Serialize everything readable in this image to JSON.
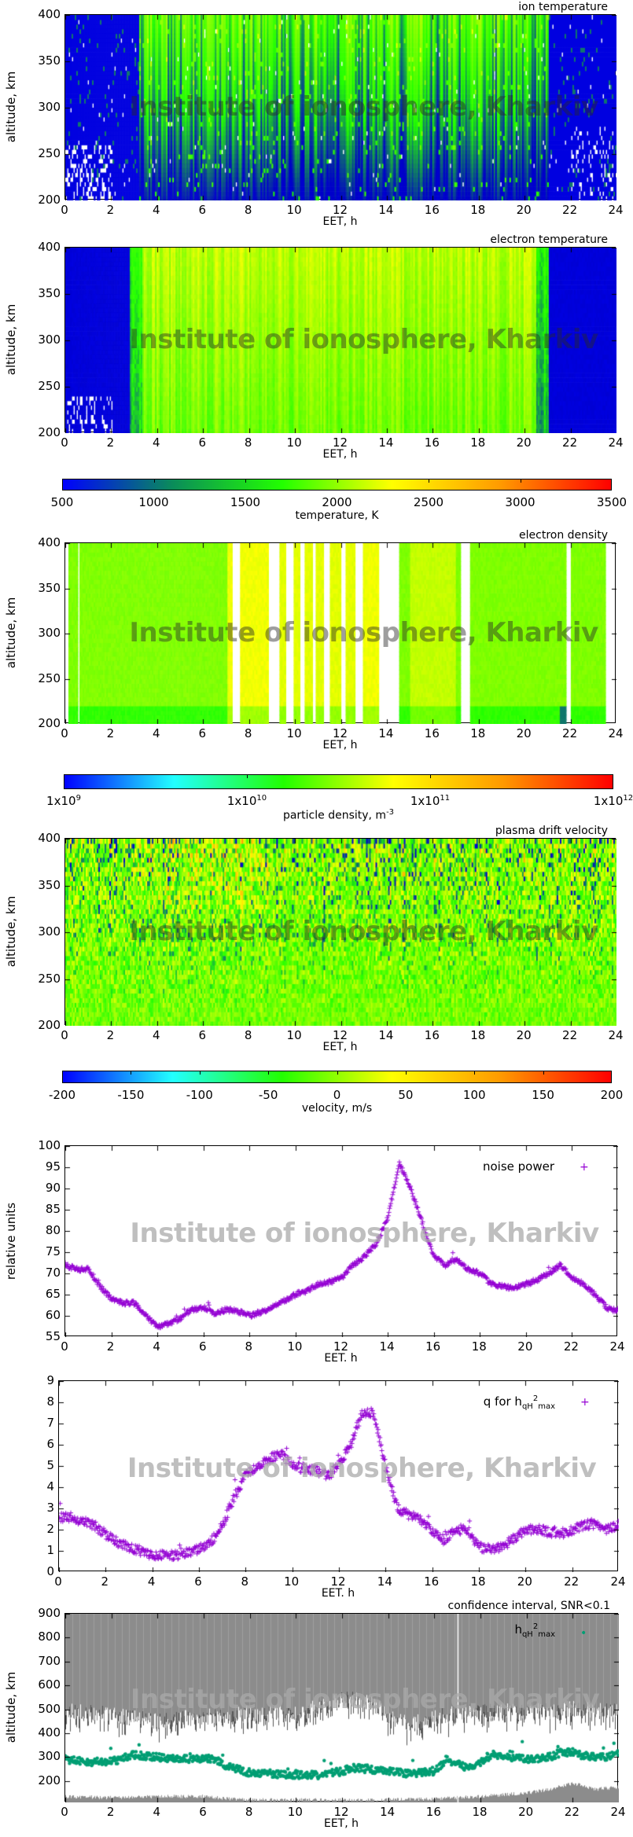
{
  "watermark": "Institute of ionosphere, Kharkiv",
  "chart_data": [
    {
      "id": "ion-temperature",
      "type": "heatmap",
      "title": "ion temperature",
      "xlabel": "EET, h",
      "ylabel": "altitude, km",
      "xlim": [
        0,
        24
      ],
      "ylim": [
        200,
        400
      ],
      "xticks": [
        0,
        2,
        4,
        6,
        8,
        10,
        12,
        14,
        16,
        18,
        20,
        22,
        24
      ],
      "yticks": [
        200,
        250,
        300,
        350,
        400
      ],
      "colorbar": "temperature"
    },
    {
      "id": "electron-temperature",
      "type": "heatmap",
      "title": "electron temperature",
      "xlabel": "EET, h",
      "ylabel": "altitude, km",
      "xlim": [
        0,
        24
      ],
      "ylim": [
        200,
        400
      ],
      "xticks": [
        0,
        2,
        4,
        6,
        8,
        10,
        12,
        14,
        16,
        18,
        20,
        22,
        24
      ],
      "yticks": [
        200,
        250,
        300,
        350,
        400
      ],
      "colorbar": "temperature"
    },
    {
      "id": "temperature-colorbar",
      "type": "colorbar",
      "label": "temperature, K",
      "range": [
        500,
        3500
      ],
      "ticks": [
        "500",
        "1000",
        "1500",
        "2000",
        "2500",
        "3000",
        "3500"
      ],
      "colors": [
        "#0000ff",
        "#0a8c5a",
        "#22ff00",
        "#ffff00",
        "#ff9900",
        "#ff0000"
      ]
    },
    {
      "id": "electron-density",
      "type": "heatmap",
      "title": "electron density",
      "xlabel": "EET, h",
      "ylabel": "altitude, km",
      "xlim": [
        0,
        24
      ],
      "ylim": [
        200,
        400
      ],
      "xticks": [
        0,
        2,
        4,
        6,
        8,
        10,
        12,
        14,
        16,
        18,
        20,
        22,
        24
      ],
      "yticks": [
        200,
        250,
        300,
        350,
        400
      ],
      "colorbar": "density"
    },
    {
      "id": "density-colorbar",
      "type": "colorbar",
      "label": "particle density, m",
      "label_sup": "-3",
      "scale": "log",
      "range": [
        1000000000.0,
        1000000000000.0
      ],
      "ticks": [
        {
          "base": "1x10",
          "exp": "9"
        },
        {
          "base": "1x10",
          "exp": "10"
        },
        {
          "base": "1x10",
          "exp": "11"
        },
        {
          "base": "1x10",
          "exp": "12"
        }
      ],
      "colors": [
        "#0000ff",
        "#22ffff",
        "#22ff00",
        "#ffff00",
        "#ff9900",
        "#ff0000"
      ]
    },
    {
      "id": "plasma-drift-velocity",
      "type": "heatmap",
      "title": "plasma drift velocity",
      "xlabel": "EET, h",
      "ylabel": "altitude, km",
      "xlim": [
        0,
        24
      ],
      "ylim": [
        200,
        400
      ],
      "xticks": [
        0,
        2,
        4,
        6,
        8,
        10,
        12,
        14,
        16,
        18,
        20,
        22,
        24
      ],
      "yticks": [
        200,
        250,
        300,
        350,
        400
      ],
      "colorbar": "velocity"
    },
    {
      "id": "velocity-colorbar",
      "type": "colorbar",
      "label": "velocity, m/s",
      "range": [
        -200,
        200
      ],
      "ticks": [
        "-200",
        "-150",
        "-100",
        "-50",
        "0",
        "50",
        "100",
        "150",
        "200"
      ],
      "colors": [
        "#0000ff",
        "#22ffff",
        "#22ff00",
        "#ffff00",
        "#ff9900",
        "#ff0000"
      ]
    },
    {
      "id": "noise-power",
      "type": "scatter",
      "xlabel": "EET. h",
      "ylabel": "relative units",
      "xlim": [
        0,
        24
      ],
      "ylim": [
        55,
        100
      ],
      "xticks": [
        0,
        2,
        4,
        6,
        8,
        10,
        12,
        14,
        16,
        18,
        20,
        22,
        24
      ],
      "yticks": [
        55,
        60,
        65,
        70,
        75,
        80,
        85,
        90,
        95,
        100
      ],
      "color": "#9400d3",
      "marker": "plus",
      "series": [
        {
          "name": "noise power",
          "x": [
            0,
            0.5,
            1,
            1.5,
            2,
            2.5,
            3,
            3.5,
            4,
            4.5,
            5,
            5.5,
            6,
            6.5,
            7,
            7.5,
            8,
            8.5,
            9,
            9.5,
            10,
            10.5,
            11,
            11.5,
            12,
            12.5,
            13,
            13.5,
            14,
            14.5,
            15,
            15.5,
            16,
            16.5,
            17,
            17.5,
            18,
            18.5,
            19,
            19.5,
            20,
            20.5,
            21,
            21.5,
            22,
            22.5,
            23,
            23.5,
            24
          ],
          "y": [
            72,
            71,
            71,
            67,
            64,
            63,
            63,
            60,
            57.5,
            58,
            59.5,
            61.5,
            62,
            60.5,
            61.5,
            61,
            60,
            61,
            62,
            63.5,
            65,
            66,
            67.5,
            68,
            69,
            72,
            74,
            77,
            83,
            96,
            90,
            82,
            74,
            72,
            73,
            71,
            70,
            67.5,
            67,
            66.5,
            67.5,
            68.5,
            70,
            72,
            69,
            67.5,
            65,
            62,
            61
          ]
        }
      ]
    },
    {
      "id": "q-for-h",
      "type": "scatter",
      "xlabel": "EET. h",
      "ylabel": "",
      "xlim": [
        0,
        24
      ],
      "ylim": [
        0,
        9
      ],
      "xticks": [
        0,
        2,
        4,
        6,
        8,
        10,
        12,
        14,
        16,
        18,
        20,
        22,
        24
      ],
      "yticks": [
        0,
        1,
        2,
        3,
        4,
        5,
        6,
        7,
        8,
        9
      ],
      "color": "#9400d3",
      "marker": "plus",
      "series": [
        {
          "name": "q for h",
          "name_sub": "qH",
          "name_sup": "2",
          "name_sub2": "max",
          "x": [
            0,
            0.5,
            1,
            1.5,
            2,
            2.5,
            3,
            3.5,
            4,
            4.5,
            5,
            5.5,
            6,
            6.5,
            7,
            7.5,
            8,
            8.5,
            9,
            9.5,
            10,
            10.5,
            11,
            11.5,
            12,
            12.5,
            13,
            13.5,
            14,
            14.5,
            15,
            15.5,
            16,
            16.5,
            17,
            17.5,
            18,
            18.5,
            19,
            19.5,
            20,
            20.5,
            21,
            21.5,
            22,
            22.5,
            23,
            23.5,
            24
          ],
          "y": [
            2.6,
            2.6,
            2.4,
            2.2,
            1.8,
            1.4,
            1.2,
            1.0,
            0.8,
            0.85,
            0.8,
            0.95,
            1.1,
            1.4,
            2.2,
            3.5,
            4.6,
            5.0,
            5.3,
            5.6,
            5.0,
            4.9,
            4.8,
            4.5,
            5.0,
            6.0,
            7.5,
            7.5,
            5.0,
            3.0,
            2.7,
            2.5,
            2.0,
            1.5,
            2.0,
            2.0,
            1.2,
            1.1,
            1.2,
            1.6,
            2.0,
            2.0,
            1.9,
            1.8,
            2.0,
            2.2,
            2.3,
            2.0,
            2.2
          ]
        }
      ]
    },
    {
      "id": "h-qh2-max",
      "type": "scatter",
      "title": "confidence interval, SNR<0.1",
      "xlabel": "EET, h",
      "ylabel": "altitude, km",
      "xlim": [
        0,
        24
      ],
      "ylim": [
        110,
        900
      ],
      "xticks": [
        0,
        2,
        4,
        6,
        8,
        10,
        12,
        14,
        16,
        18,
        20,
        22,
        24
      ],
      "yticks": [
        200,
        300,
        400,
        500,
        600,
        700,
        800,
        900
      ],
      "color": "#009e73",
      "band_color": "#8c8c8c",
      "series": [
        {
          "name": "h",
          "name_sub": "qH",
          "name_sup": "2",
          "name_sub2": "max",
          "x": [
            0,
            1,
            2,
            3,
            4,
            5,
            6,
            6.5,
            7,
            8,
            9,
            10,
            11,
            12,
            12.5,
            13,
            14,
            15,
            16,
            16.5,
            17,
            17.5,
            18,
            18.5,
            19,
            20,
            21,
            21.5,
            22,
            22.5,
            23,
            23.5,
            24
          ],
          "y": [
            290,
            280,
            280,
            310,
            300,
            290,
            295,
            290,
            260,
            235,
            230,
            225,
            225,
            240,
            255,
            250,
            240,
            230,
            240,
            290,
            270,
            250,
            280,
            310,
            300,
            290,
            300,
            320,
            320,
            305,
            300,
            300,
            320
          ]
        }
      ],
      "confidence_upper_band_lower_edge": {
        "x": [
          0,
          2,
          4,
          6,
          8,
          10,
          12,
          13,
          14,
          15,
          16,
          18,
          20,
          22,
          24
        ],
        "y": [
          490,
          480,
          450,
          470,
          480,
          480,
          540,
          540,
          470,
          440,
          470,
          490,
          490,
          500,
          500
        ]
      },
      "confidence_lower_band_upper_edge": {
        "x": [
          0,
          2,
          4,
          6,
          7,
          8,
          10,
          12,
          14,
          16,
          18,
          20,
          21,
          22,
          23,
          24
        ],
        "y": [
          135,
          130,
          135,
          135,
          125,
          120,
          120,
          120,
          120,
          125,
          135,
          150,
          165,
          190,
          165,
          175
        ]
      }
    }
  ]
}
